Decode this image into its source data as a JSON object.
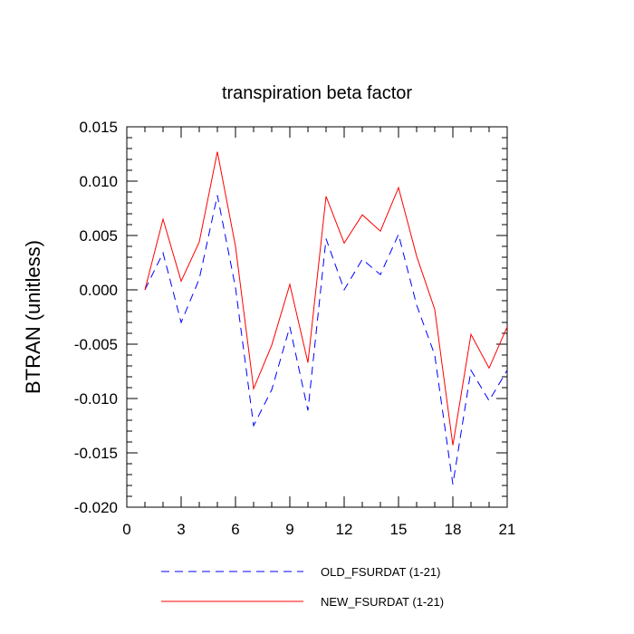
{
  "chart_data": {
    "type": "line",
    "title": "transpiration beta factor",
    "ylabel": "BTRAN  (unitless)",
    "xlabel": "",
    "x": [
      1,
      2,
      3,
      4,
      5,
      6,
      7,
      8,
      9,
      10,
      11,
      12,
      13,
      14,
      15,
      16,
      17,
      18,
      19,
      20,
      21
    ],
    "xlim": [
      0,
      21
    ],
    "ylim": [
      -0.02,
      0.015
    ],
    "x_ticks": [
      0,
      3,
      6,
      9,
      12,
      15,
      18,
      21
    ],
    "x_tick_labels": [
      "0",
      "3",
      "6",
      "9",
      "12",
      "15",
      "18",
      "21"
    ],
    "y_ticks": [
      -0.02,
      -0.015,
      -0.01,
      -0.005,
      0.0,
      0.005,
      0.01,
      0.015
    ],
    "y_tick_labels": [
      "-0.020",
      "-0.015",
      "-0.010",
      "-0.005",
      "0.000",
      "0.005",
      "0.010",
      "0.015"
    ],
    "grid": false,
    "legend_position": "bottom",
    "series": [
      {
        "name": "OLD_FSURDAT (1-21)",
        "color": "#0000ff",
        "dash": "dashed",
        "values": [
          0.0,
          0.0034,
          -0.003,
          0.001,
          0.0087,
          0.0002,
          -0.0125,
          -0.0092,
          -0.0034,
          -0.0111,
          0.0047,
          0.0,
          0.0028,
          0.0014,
          0.0051,
          -0.0014,
          -0.006,
          -0.0179,
          -0.0074,
          -0.0102,
          -0.0074
        ]
      },
      {
        "name": "NEW_FSURDAT (1-21)",
        "color": "#ff0000",
        "dash": "solid",
        "values": [
          0.0,
          0.0065,
          0.0008,
          0.0044,
          0.0127,
          0.004,
          -0.0091,
          -0.0051,
          0.0005,
          -0.0067,
          0.0086,
          0.0043,
          0.0069,
          0.0054,
          0.0094,
          0.0031,
          -0.0018,
          -0.0143,
          -0.0041,
          -0.0072,
          -0.0034
        ]
      }
    ]
  }
}
